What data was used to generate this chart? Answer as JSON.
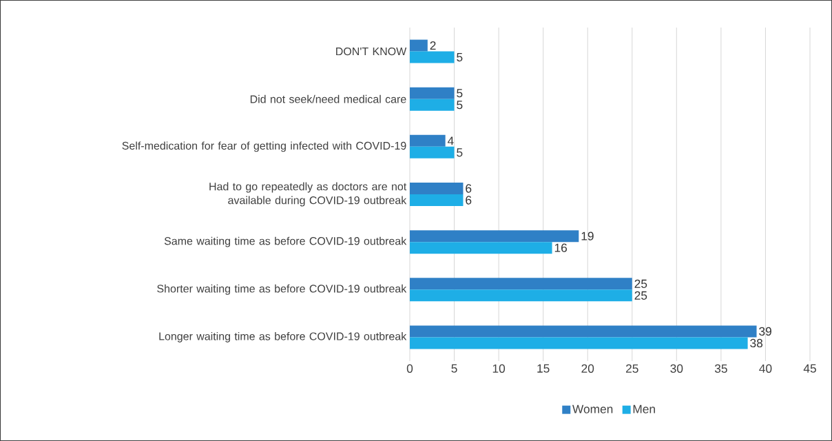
{
  "chart_data": {
    "type": "bar",
    "orientation": "horizontal",
    "categories": [
      "DON'T KNOW",
      "Did not seek/need medical care",
      "Self-medication for fear of getting infected with COVID-19",
      "Had to go repeatedly as doctors are not available during COVID-19 outbreak",
      "Same waiting time as before COVID-19 outbreak",
      "Shorter waiting time as before COVID-19 outbreak",
      "Longer waiting time as before COVID-19 outbreak"
    ],
    "series": [
      {
        "name": "Women",
        "color": "#2f80c6",
        "values": [
          2,
          5,
          4,
          6,
          19,
          25,
          39
        ]
      },
      {
        "name": "Men",
        "color": "#1eaee6",
        "values": [
          5,
          5,
          5,
          6,
          16,
          25,
          38
        ]
      }
    ],
    "xlim": [
      0,
      45
    ],
    "xticks": [
      0,
      5,
      10,
      15,
      20,
      25,
      30,
      35,
      40,
      45
    ],
    "grid": "x",
    "legend": "bottom",
    "data_labels": true
  }
}
